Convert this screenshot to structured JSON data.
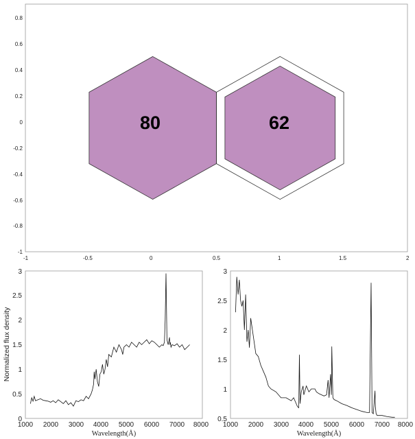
{
  "chart_data": [
    {
      "type": "scatter",
      "xlim": [
        -1,
        2
      ],
      "ylim": [
        -1,
        1
      ],
      "x_ticks": [
        "-1",
        "-0.5",
        "0",
        "0.5",
        "1",
        "1.5",
        "2"
      ],
      "y_ticks": [
        "-1",
        "-0.8",
        "-0.6",
        "-0.4",
        "-0.2",
        "0",
        "0.2",
        "0.4",
        "0.6",
        "0.8"
      ],
      "fill_color": "#bf8fbf",
      "hexagons": [
        {
          "label": "80",
          "center": [
            0,
            0
          ],
          "radius": 0.577,
          "outline_only": false
        },
        {
          "label": "62",
          "center": [
            1,
            0
          ],
          "radius": 0.577,
          "outline_only": true
        },
        {
          "label": "",
          "center": [
            1,
            0
          ],
          "radius": 0.5,
          "outline_only": false
        }
      ]
    },
    {
      "type": "line",
      "xlabel": "Wavelength(Å)",
      "ylabel": "Normalized flux density",
      "xlim": [
        1000,
        8000
      ],
      "ylim": [
        0,
        3
      ],
      "x_ticks": [
        "1000",
        "2000",
        "3000",
        "4000",
        "5000",
        "6000",
        "7000",
        "8000"
      ],
      "y_ticks": [
        "0",
        "0.5",
        "1",
        "1.5",
        "2",
        "2.5",
        "3"
      ],
      "series": [
        {
          "x": [
            1200,
            1250,
            1300,
            1350,
            1400,
            1500,
            1600,
            1700,
            1800,
            1900,
            2000,
            2100,
            2200,
            2300,
            2400,
            2500,
            2600,
            2700,
            2800,
            2900,
            3000,
            3100,
            3200,
            3300,
            3400,
            3500,
            3600,
            3650,
            3700,
            3720,
            3750,
            3800,
            3850,
            3900,
            3950,
            4000,
            4050,
            4100,
            4150,
            4200,
            4250,
            4300,
            4400,
            4500,
            4600,
            4700,
            4800,
            4850,
            4900,
            5000,
            5100,
            5200,
            5300,
            5400,
            5500,
            5600,
            5700,
            5800,
            5900,
            6000,
            6100,
            6200,
            6300,
            6400,
            6450,
            6500,
            6530,
            6563,
            6600,
            6650,
            6700,
            6716,
            6731,
            6760,
            6800,
            6900,
            7000,
            7100,
            7200,
            7300,
            7400,
            7500
          ],
          "y": [
            0.3,
            0.42,
            0.35,
            0.45,
            0.36,
            0.38,
            0.4,
            0.37,
            0.36,
            0.35,
            0.33,
            0.36,
            0.32,
            0.38,
            0.34,
            0.3,
            0.36,
            0.28,
            0.32,
            0.25,
            0.36,
            0.34,
            0.38,
            0.36,
            0.45,
            0.4,
            0.5,
            0.58,
            0.7,
            0.95,
            0.8,
            1.0,
            0.75,
            0.65,
            0.9,
            0.95,
            1.1,
            0.9,
            1.0,
            1.2,
            1.05,
            1.3,
            1.25,
            1.45,
            1.35,
            1.5,
            1.4,
            1.3,
            1.45,
            1.5,
            1.45,
            1.55,
            1.5,
            1.45,
            1.55,
            1.5,
            1.55,
            1.6,
            1.52,
            1.58,
            1.55,
            1.5,
            1.45,
            1.5,
            1.48,
            1.55,
            2.0,
            2.95,
            1.6,
            1.5,
            1.65,
            1.5,
            1.55,
            1.45,
            1.5,
            1.48,
            1.52,
            1.45,
            1.5,
            1.4,
            1.45,
            1.5
          ]
        }
      ]
    },
    {
      "type": "line",
      "xlabel": "Wavelength(Å)",
      "ylabel": "",
      "xlim": [
        1000,
        8000
      ],
      "ylim": [
        0.5,
        3
      ],
      "x_ticks": [
        "1000",
        "2000",
        "3000",
        "4000",
        "5000",
        "6000",
        "7000",
        "8000"
      ],
      "y_ticks": [
        "0.5",
        "1",
        "1.5",
        "2",
        "2.5",
        "3"
      ],
      "series": [
        {
          "x": [
            1200,
            1250,
            1300,
            1350,
            1400,
            1450,
            1500,
            1550,
            1600,
            1650,
            1700,
            1750,
            1800,
            1900,
            2000,
            2100,
            2200,
            2300,
            2400,
            2500,
            2600,
            2800,
            3000,
            3200,
            3400,
            3500,
            3600,
            3650,
            3700,
            3727,
            3750,
            3800,
            3870,
            3900,
            4000,
            4100,
            4200,
            4340,
            4400,
            4500,
            4600,
            4700,
            4800,
            4861,
            4900,
            4959,
            4990,
            5007,
            5050,
            5100,
            5200,
            5400,
            5600,
            5800,
            6000,
            6200,
            6400,
            6500,
            6563,
            6600,
            6650,
            6716,
            6731,
            6760,
            6800,
            7000,
            7200,
            7400,
            7500
          ],
          "y": [
            2.3,
            2.9,
            2.6,
            2.85,
            2.5,
            2.4,
            2.5,
            2.0,
            2.6,
            1.8,
            2.0,
            1.7,
            2.2,
            1.9,
            1.6,
            1.55,
            1.4,
            1.3,
            1.2,
            1.05,
            1.0,
            0.95,
            0.85,
            0.85,
            0.8,
            0.85,
            0.75,
            0.7,
            0.68,
            1.58,
            0.75,
            0.95,
            1.05,
            0.9,
            1.05,
            0.95,
            1.0,
            1.0,
            0.95,
            0.92,
            0.9,
            0.88,
            0.9,
            1.15,
            0.85,
            1.25,
            0.9,
            1.72,
            0.85,
            0.82,
            0.8,
            0.75,
            0.72,
            0.68,
            0.65,
            0.62,
            0.6,
            0.6,
            2.8,
            0.6,
            0.58,
            0.97,
            0.7,
            0.58,
            0.55,
            0.55,
            0.53,
            0.52,
            0.52
          ]
        }
      ]
    }
  ]
}
